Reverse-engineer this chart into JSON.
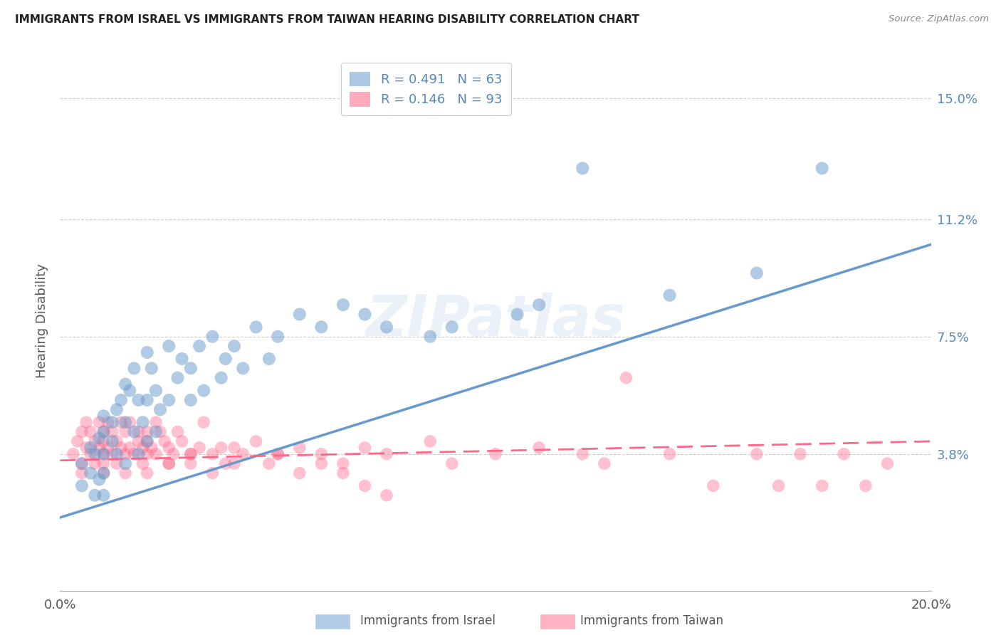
{
  "title": "IMMIGRANTS FROM ISRAEL VS IMMIGRANTS FROM TAIWAN HEARING DISABILITY CORRELATION CHART",
  "source": "Source: ZipAtlas.com",
  "ylabel": "Hearing Disability",
  "xlim": [
    0.0,
    0.2
  ],
  "ylim": [
    -0.005,
    0.165
  ],
  "israel_color": "#6699CC",
  "taiwan_color": "#FF6688",
  "israel_R": 0.491,
  "israel_N": 63,
  "taiwan_R": 0.146,
  "taiwan_N": 93,
  "israel_label": "Immigrants from Israel",
  "taiwan_label": "Immigrants from Taiwan",
  "watermark_text": "ZIPatlas",
  "israel_scatter_x": [
    0.005,
    0.005,
    0.007,
    0.007,
    0.008,
    0.008,
    0.009,
    0.009,
    0.01,
    0.01,
    0.01,
    0.01,
    0.01,
    0.012,
    0.012,
    0.013,
    0.013,
    0.014,
    0.015,
    0.015,
    0.015,
    0.016,
    0.017,
    0.017,
    0.018,
    0.018,
    0.019,
    0.02,
    0.02,
    0.02,
    0.021,
    0.022,
    0.022,
    0.023,
    0.025,
    0.025,
    0.027,
    0.028,
    0.03,
    0.03,
    0.032,
    0.033,
    0.035,
    0.037,
    0.038,
    0.04,
    0.042,
    0.045,
    0.048,
    0.05,
    0.055,
    0.06,
    0.065,
    0.07,
    0.075,
    0.085,
    0.09,
    0.105,
    0.11,
    0.12,
    0.14,
    0.16,
    0.175
  ],
  "israel_scatter_y": [
    0.035,
    0.028,
    0.04,
    0.032,
    0.038,
    0.025,
    0.043,
    0.03,
    0.05,
    0.045,
    0.038,
    0.032,
    0.025,
    0.048,
    0.042,
    0.052,
    0.038,
    0.055,
    0.06,
    0.048,
    0.035,
    0.058,
    0.065,
    0.045,
    0.055,
    0.038,
    0.048,
    0.07,
    0.055,
    0.042,
    0.065,
    0.058,
    0.045,
    0.052,
    0.072,
    0.055,
    0.062,
    0.068,
    0.065,
    0.055,
    0.072,
    0.058,
    0.075,
    0.062,
    0.068,
    0.072,
    0.065,
    0.078,
    0.068,
    0.075,
    0.082,
    0.078,
    0.085,
    0.082,
    0.078,
    0.075,
    0.078,
    0.082,
    0.085,
    0.128,
    0.088,
    0.095,
    0.128
  ],
  "taiwan_scatter_x": [
    0.003,
    0.004,
    0.005,
    0.005,
    0.005,
    0.006,
    0.006,
    0.007,
    0.007,
    0.008,
    0.008,
    0.009,
    0.009,
    0.01,
    0.01,
    0.01,
    0.01,
    0.01,
    0.011,
    0.011,
    0.012,
    0.012,
    0.013,
    0.013,
    0.014,
    0.014,
    0.015,
    0.015,
    0.015,
    0.016,
    0.016,
    0.017,
    0.018,
    0.018,
    0.019,
    0.019,
    0.02,
    0.02,
    0.02,
    0.021,
    0.022,
    0.022,
    0.023,
    0.024,
    0.025,
    0.025,
    0.026,
    0.027,
    0.028,
    0.03,
    0.03,
    0.032,
    0.033,
    0.035,
    0.037,
    0.038,
    0.04,
    0.042,
    0.045,
    0.048,
    0.05,
    0.055,
    0.06,
    0.065,
    0.07,
    0.075,
    0.085,
    0.09,
    0.1,
    0.11,
    0.12,
    0.125,
    0.13,
    0.14,
    0.15,
    0.16,
    0.165,
    0.17,
    0.175,
    0.18,
    0.185,
    0.19,
    0.02,
    0.025,
    0.03,
    0.035,
    0.04,
    0.05,
    0.055,
    0.06,
    0.065,
    0.07,
    0.075
  ],
  "taiwan_scatter_y": [
    0.038,
    0.042,
    0.035,
    0.045,
    0.032,
    0.04,
    0.048,
    0.038,
    0.045,
    0.042,
    0.035,
    0.04,
    0.048,
    0.038,
    0.045,
    0.042,
    0.035,
    0.032,
    0.04,
    0.048,
    0.038,
    0.045,
    0.042,
    0.035,
    0.04,
    0.048,
    0.038,
    0.045,
    0.032,
    0.04,
    0.048,
    0.038,
    0.045,
    0.042,
    0.035,
    0.04,
    0.038,
    0.045,
    0.032,
    0.04,
    0.048,
    0.038,
    0.045,
    0.042,
    0.035,
    0.04,
    0.038,
    0.045,
    0.042,
    0.038,
    0.035,
    0.04,
    0.048,
    0.038,
    0.04,
    0.035,
    0.04,
    0.038,
    0.042,
    0.035,
    0.038,
    0.04,
    0.038,
    0.035,
    0.04,
    0.038,
    0.042,
    0.035,
    0.038,
    0.04,
    0.038,
    0.035,
    0.062,
    0.038,
    0.028,
    0.038,
    0.028,
    0.038,
    0.028,
    0.038,
    0.028,
    0.035,
    0.042,
    0.035,
    0.038,
    0.032,
    0.035,
    0.038,
    0.032,
    0.035,
    0.032,
    0.028,
    0.025
  ],
  "israel_line_x": [
    0.0,
    0.2
  ],
  "israel_line_y": [
    0.018,
    0.104
  ],
  "taiwan_line_x": [
    0.0,
    0.2
  ],
  "taiwan_line_y": [
    0.036,
    0.042
  ],
  "ytick_positions": [
    0.038,
    0.075,
    0.112,
    0.15
  ],
  "ytick_labels": [
    "3.8%",
    "7.5%",
    "11.2%",
    "15.0%"
  ],
  "background_color": "#ffffff",
  "grid_color": "#cccccc",
  "title_color": "#222222",
  "right_tick_color": "#5588bb"
}
